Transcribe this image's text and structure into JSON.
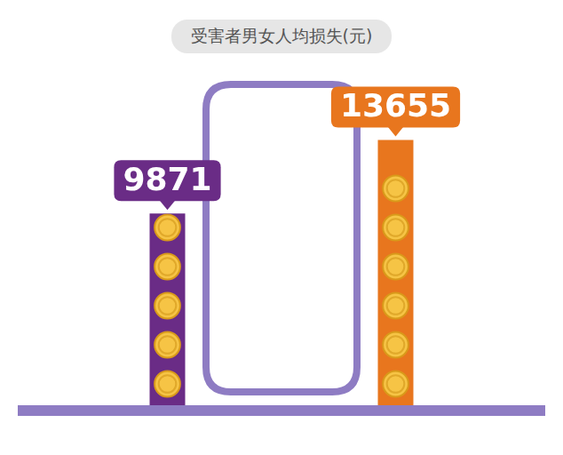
{
  "chart_data": {
    "type": "bar",
    "title": "受害者男女人均损失(元)",
    "categories": [
      null,
      null
    ],
    "values": [
      9871,
      13655
    ],
    "colors": [
      "#6a2c86",
      "#e8761e"
    ],
    "data_labels": true,
    "tick_labels": false,
    "grid": false
  }
}
